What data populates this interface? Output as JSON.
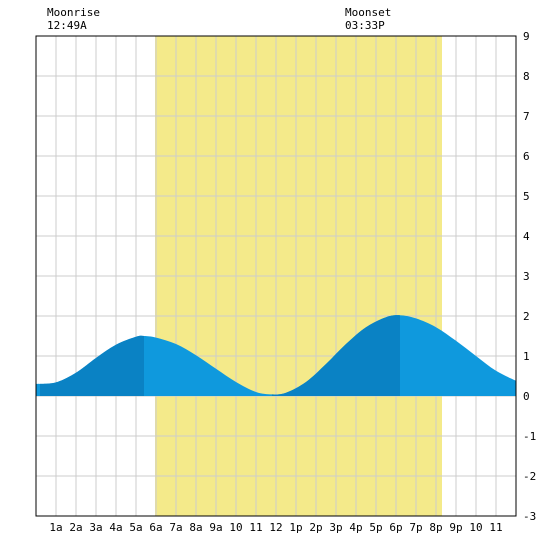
{
  "moonrise": {
    "label": "Moonrise",
    "time": "12:49A"
  },
  "moonset": {
    "label": "Moonset",
    "time": "03:33P"
  },
  "colors": {
    "daylight": "#f4ea8a",
    "tide_light": "#0f99dd",
    "tide_dark": "#0a82c4",
    "grid": "#cccccc",
    "border": "#000000"
  },
  "chart_data": {
    "type": "area",
    "xlabel": "",
    "ylabel": "",
    "xlim": [
      0,
      24
    ],
    "ylim": [
      -3,
      9
    ],
    "grid": true,
    "x_ticks": [
      {
        "x": 1,
        "label": "1a"
      },
      {
        "x": 2,
        "label": "2a"
      },
      {
        "x": 3,
        "label": "3a"
      },
      {
        "x": 4,
        "label": "4a"
      },
      {
        "x": 5,
        "label": "5a"
      },
      {
        "x": 6,
        "label": "6a"
      },
      {
        "x": 7,
        "label": "7a"
      },
      {
        "x": 8,
        "label": "8a"
      },
      {
        "x": 9,
        "label": "9a"
      },
      {
        "x": 10,
        "label": "10"
      },
      {
        "x": 11,
        "label": "11"
      },
      {
        "x": 12,
        "label": "12"
      },
      {
        "x": 13,
        "label": "1p"
      },
      {
        "x": 14,
        "label": "2p"
      },
      {
        "x": 15,
        "label": "3p"
      },
      {
        "x": 16,
        "label": "4p"
      },
      {
        "x": 17,
        "label": "5p"
      },
      {
        "x": 18,
        "label": "6p"
      },
      {
        "x": 19,
        "label": "7p"
      },
      {
        "x": 20,
        "label": "8p"
      },
      {
        "x": 21,
        "label": "9p"
      },
      {
        "x": 22,
        "label": "10"
      },
      {
        "x": 23,
        "label": "11"
      }
    ],
    "y_ticks": [
      -3,
      -2,
      -1,
      0,
      1,
      2,
      3,
      4,
      5,
      6,
      7,
      8,
      9
    ],
    "daylight_window": [
      5.95,
      20.3
    ],
    "moonrise_hour": 0.82,
    "moonset_hour": 15.55,
    "tide_curve": {
      "x": [
        0.0,
        1.0,
        2.0,
        3.0,
        4.0,
        5.0,
        5.4,
        6.0,
        7.0,
        8.0,
        9.0,
        10.0,
        11.0,
        11.8,
        12.5,
        13.5,
        14.5,
        15.5,
        16.5,
        17.5,
        18.2,
        19.0,
        20.0,
        21.0,
        22.0,
        23.0,
        24.0
      ],
      "y": [
        0.3,
        0.34,
        0.58,
        0.95,
        1.28,
        1.48,
        1.5,
        1.46,
        1.3,
        1.02,
        0.68,
        0.35,
        0.1,
        0.04,
        0.08,
        0.35,
        0.8,
        1.3,
        1.72,
        1.97,
        2.02,
        1.94,
        1.72,
        1.38,
        1.0,
        0.63,
        0.38
      ]
    },
    "high_tides": [
      {
        "hour": 5.4,
        "height": 1.5
      },
      {
        "hour": 18.2,
        "height": 2.02
      }
    ],
    "low_tides": [
      {
        "hour": 0.2,
        "height": 0.3
      },
      {
        "hour": 11.8,
        "height": 0.04
      }
    ]
  }
}
